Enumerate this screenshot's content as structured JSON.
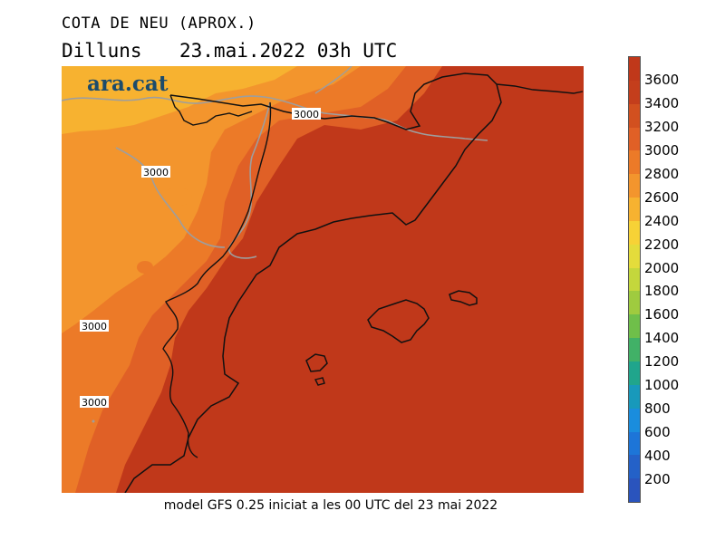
{
  "header": {
    "title": "COTA DE NEU (APROX.)",
    "day": "Dilluns",
    "datetime": "23.mai.2022 03h UTC"
  },
  "logo": {
    "text": "ara.cat"
  },
  "footer": {
    "text": "model GFS 0.25 iniciat a les 00 UTC del 23 mai 2022"
  },
  "contour_labels": [
    "3000",
    "3000",
    "3000",
    "3000"
  ],
  "legend": {
    "labels": [
      "3600",
      "3400",
      "3200",
      "3000",
      "2800",
      "2600",
      "2400",
      "2200",
      "2000",
      "1800",
      "1600",
      "1400",
      "1200",
      "1000",
      "800",
      "600",
      "400",
      "200"
    ],
    "colors": [
      "#c0381a",
      "#c43e1c",
      "#d2501f",
      "#e06026",
      "#ec7a28",
      "#f3952d",
      "#f7b230",
      "#f7d236",
      "#e4dc3b",
      "#c4d73c",
      "#9fcb3f",
      "#6fbf4a",
      "#41b167",
      "#20a58c",
      "#1899bb",
      "#1a8ddd",
      "#1d75d8",
      "#2461c8",
      "#2a54bd"
    ]
  },
  "colors": {
    "sea": "#c0381a",
    "land_high": "#c43e1c",
    "land_mid": "#e06026",
    "land_low": "#ec7a28",
    "land_lower": "#f3952d",
    "land_lowest": "#f7b230"
  }
}
